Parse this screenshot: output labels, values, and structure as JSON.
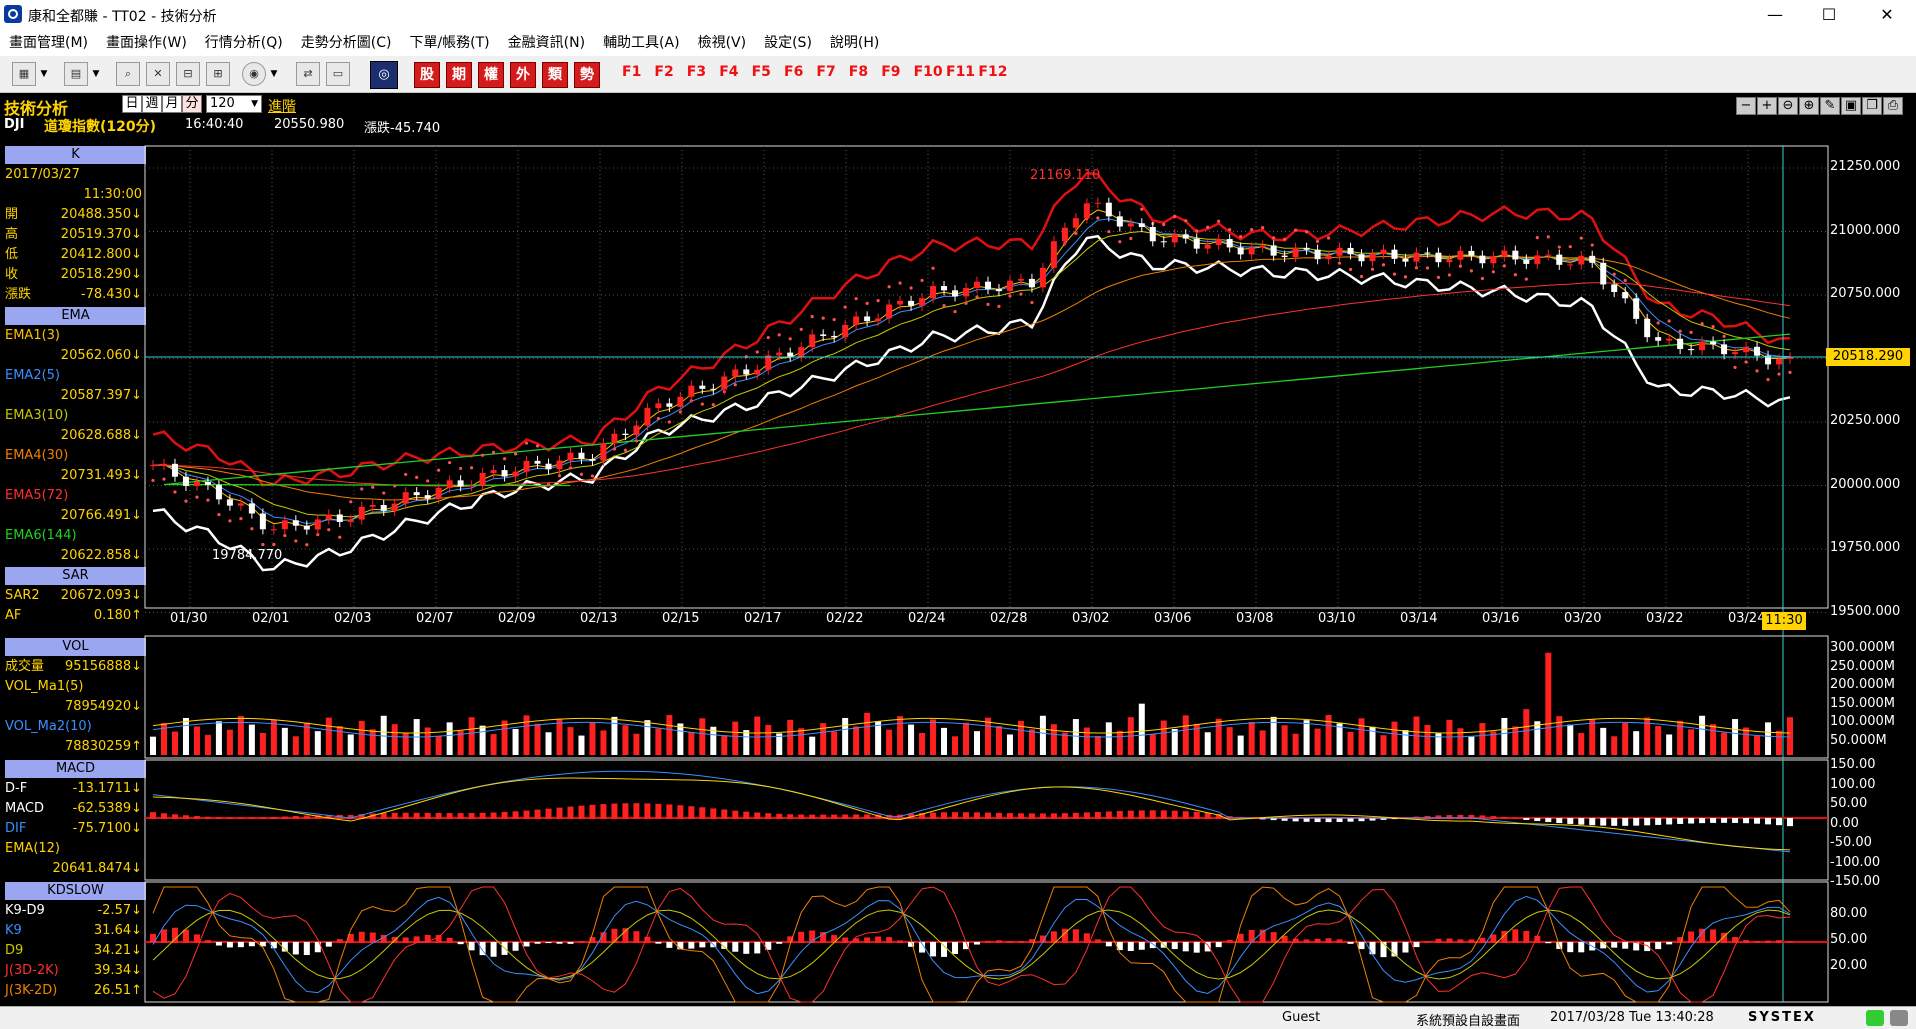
{
  "window": {
    "title": "康和全都賺 - TT02 - 技術分析",
    "min": "—",
    "max": "☐",
    "close": "✕"
  },
  "menu": [
    "畫面管理(M)",
    "畫面操作(W)",
    "行情分析(Q)",
    "走勢分析圖(C)",
    "下單/帳務(T)",
    "金融資訊(N)",
    "輔助工具(A)",
    "檢視(V)",
    "設定(S)",
    "說明(H)"
  ],
  "toolbar": {
    "red_buttons": [
      "股",
      "期",
      "權",
      "外",
      "類",
      "勢"
    ],
    "fkeys": [
      "F1",
      "F2",
      "F3",
      "F4",
      "F5",
      "F6",
      "F7",
      "F8",
      "F9",
      "F10",
      "F11",
      "F12"
    ]
  },
  "header": {
    "section_title": "技術分析",
    "periods": [
      "日",
      "週",
      "月",
      "分"
    ],
    "period_count": "120",
    "advanced": "進階",
    "symbol": "DJI",
    "symbol_name": "道瓊指數(120分)",
    "time": "16:40:40",
    "price": "20550.980",
    "change": "漲跌-45.740"
  },
  "left_panel": {
    "k": {
      "title": "K",
      "date": "2017/03/27",
      "time": "11:30:00",
      "rows": [
        [
          "開",
          "20488.350↓"
        ],
        [
          "高",
          "20519.370↓"
        ],
        [
          "低",
          "20412.800↓"
        ],
        [
          "收",
          "20518.290↓"
        ],
        [
          "漲跌",
          "-78.430↓"
        ]
      ]
    },
    "ema": {
      "title": "EMA",
      "rows": [
        [
          "EMA1(3)",
          "20562.060↓",
          "#ffc000"
        ],
        [
          "EMA2(5)",
          "20587.397↓",
          "#3a8fff"
        ],
        [
          "EMA3(10)",
          "20628.688↓",
          "#c8c800"
        ],
        [
          "EMA4(30)",
          "20731.493↓",
          "#f08000"
        ],
        [
          "EMA5(72)",
          "20766.491↓",
          "#ff3030"
        ],
        [
          "EMA6(144)",
          "20622.858↓",
          "#20d020"
        ]
      ]
    },
    "sar": {
      "title": "SAR",
      "rows": [
        [
          "SAR2",
          "20672.093↓"
        ],
        [
          "AF",
          "0.180↑"
        ]
      ]
    },
    "vol": {
      "title": "VOL",
      "rows": [
        [
          "成交量",
          "95156888↓"
        ],
        [
          "VOL_Ma1(5)",
          "78954920↓"
        ],
        [
          "VOL_Ma2(10)",
          "78830259↑"
        ]
      ]
    },
    "macd": {
      "title": "MACD",
      "rows": [
        [
          "D-F",
          "-13.1711↓"
        ],
        [
          "MACD",
          "-62.5389↓"
        ],
        [
          "DIF",
          "-75.7100↓"
        ],
        [
          "EMA(12)",
          "20641.8474↓"
        ]
      ]
    },
    "kd": {
      "title": "KDSLOW",
      "rows": [
        [
          "K9-D9",
          "-2.57↓"
        ],
        [
          "K9",
          "31.64↓"
        ],
        [
          "D9",
          "34.21↓"
        ],
        [
          "J(3D-2K)",
          "39.34↓"
        ],
        [
          "J(3K-2D)",
          "26.51↑"
        ]
      ]
    }
  },
  "price_axis": [
    "21250.000",
    "21000.000",
    "20750.000",
    "20500.000",
    "20250.000",
    "20000.000",
    "19750.000",
    "19500.000"
  ],
  "current_price_tag": "20518.290",
  "date_axis": [
    "01/30",
    "02/01",
    "02/03",
    "02/07",
    "02/09",
    "02/13",
    "02/15",
    "02/17",
    "02/22",
    "02/24",
    "02/28",
    "03/02",
    "03/06",
    "03/08",
    "03/10",
    "03/14",
    "03/16",
    "03/20",
    "03/22",
    "03/24"
  ],
  "cursor_time": "11:30",
  "high_label": "21169.110",
  "low_label": "19784.770",
  "vol_axis": [
    "300.000M",
    "250.000M",
    "200.000M",
    "150.000M",
    "100.000M",
    "50.000M"
  ],
  "macd_axis": [
    "150.00",
    "100.00",
    "50.00",
    "0.00",
    "-50.00",
    "-100.00",
    "-150.00"
  ],
  "kd_axis": [
    "80.00",
    "50.00",
    "20.00"
  ],
  "status": {
    "user": "Guest",
    "layout": "系統預設自設畫面",
    "datetime": "2017/03/28 Tue 13:40:28",
    "brand": "SYSTEX"
  }
}
